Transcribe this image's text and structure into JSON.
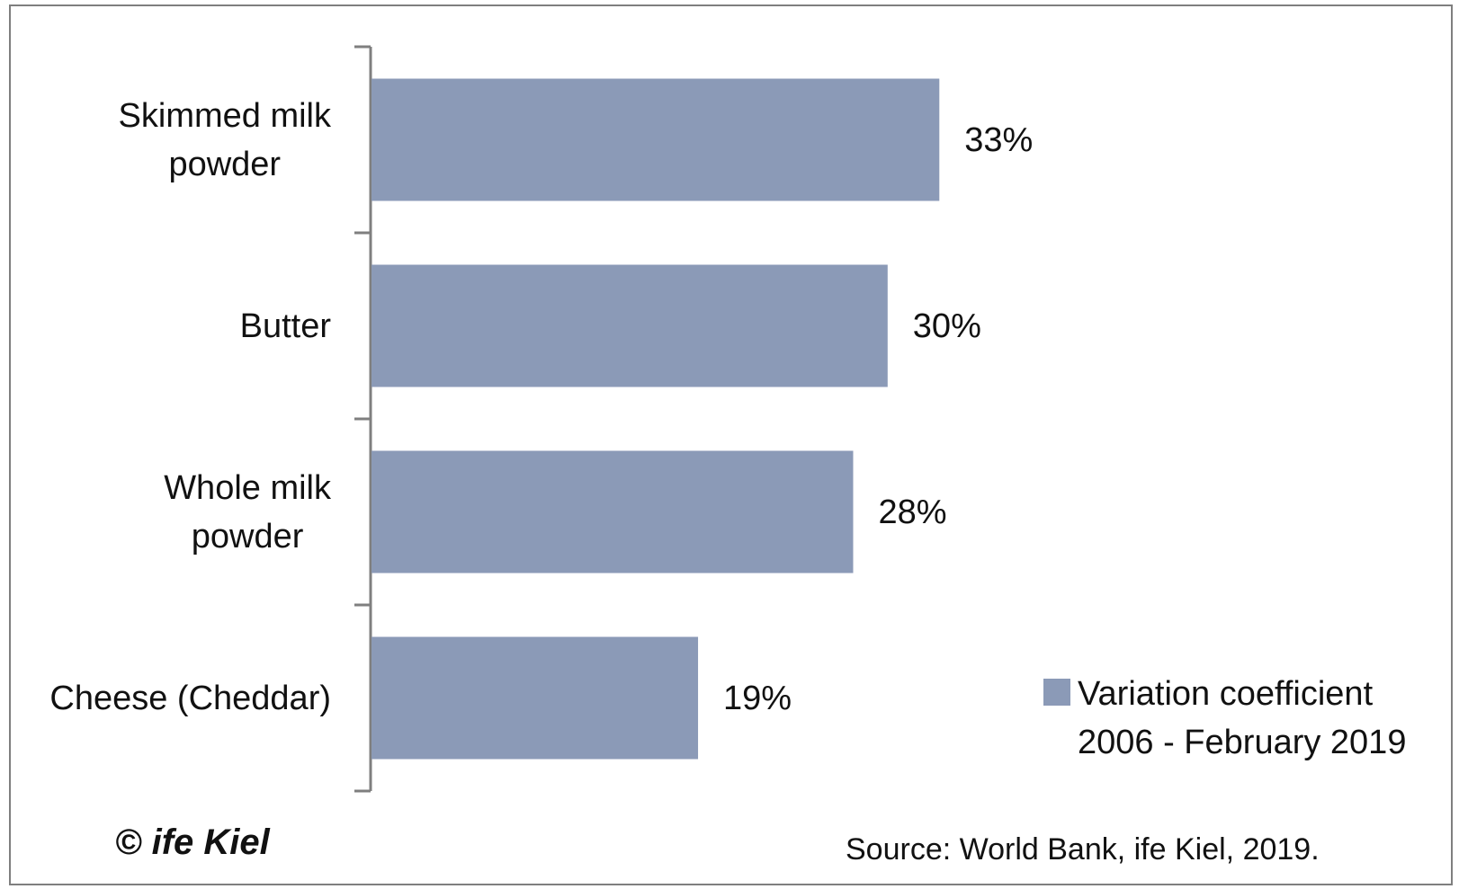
{
  "chart_data": {
    "type": "bar",
    "orientation": "horizontal",
    "categories": [
      "Skimmed milk powder",
      "Butter",
      "Whole milk powder",
      "Cheese (Cheddar)"
    ],
    "category_label_lines": [
      [
        "Skimmed milk",
        "powder"
      ],
      [
        "Butter"
      ],
      [
        "Whole milk",
        "powder"
      ],
      [
        "Cheese (Cheddar)"
      ]
    ],
    "series": [
      {
        "name": "Variation coefficient 2006 - February 2019",
        "values": [
          33,
          30,
          28,
          19
        ],
        "color": "#8b9ab7"
      }
    ],
    "value_labels": [
      "33%",
      "30%",
      "28%",
      "19%"
    ],
    "xlim": [
      0,
      50
    ],
    "legend_position": "bottom-right",
    "grid": false
  },
  "legend": {
    "line1": "Variation coefficient",
    "line2": "2006 - February 2019"
  },
  "copyright": "© ife Kiel",
  "source": "Source: World Bank, ife Kiel, 2019.",
  "colors": {
    "bar": "#8b9ab7",
    "axis": "#7f7f7f",
    "frame": "#7f7f7f"
  }
}
